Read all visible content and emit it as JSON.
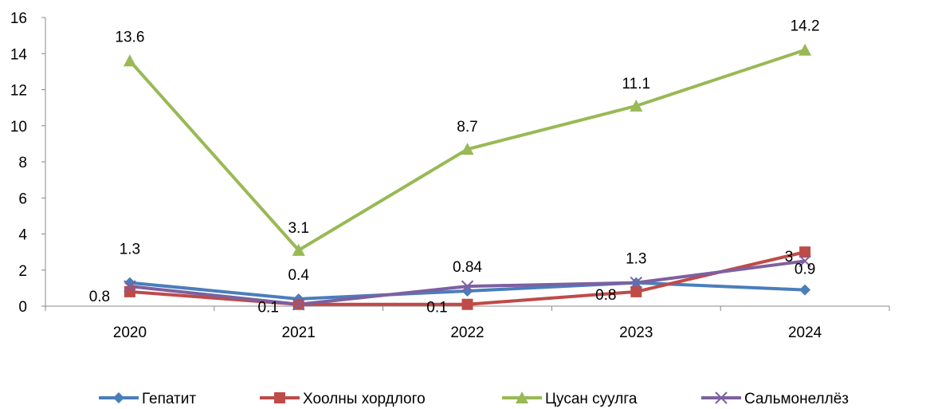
{
  "chart_data": {
    "type": "line",
    "categories": [
      "2020",
      "2021",
      "2022",
      "2023",
      "2024"
    ],
    "ylim": [
      0,
      16
    ],
    "yticks": [
      0,
      2,
      4,
      6,
      8,
      10,
      12,
      14,
      16
    ],
    "grid": false,
    "legend_position": "bottom",
    "series": [
      {
        "name": "Гепатит",
        "color": "#4a7ebb",
        "marker": "diamond",
        "values": [
          1.3,
          0.4,
          0.84,
          1.3,
          0.9
        ],
        "labels": [
          "1.3",
          "0.4",
          "0.84",
          "1.3",
          "0.9"
        ]
      },
      {
        "name": "Хоолны  хордлого",
        "color": "#be4b48",
        "marker": "square",
        "values": [
          0.8,
          0.1,
          0.1,
          0.8,
          3
        ],
        "labels": [
          "0.8",
          "0.1",
          "0.1",
          "0.8",
          "3"
        ]
      },
      {
        "name": "Цусан суулга",
        "color": "#98b954",
        "marker": "triangle",
        "values": [
          13.6,
          3.1,
          8.7,
          11.1,
          14.2
        ],
        "labels": [
          "13.6",
          "3.1",
          "8.7",
          "11.1",
          "14.2"
        ]
      },
      {
        "name": "Сальмонеллёз",
        "color": "#7d60a0",
        "marker": "x",
        "values": [
          1.1,
          0.1,
          1.1,
          1.3,
          2.5
        ],
        "labels": []
      }
    ]
  }
}
